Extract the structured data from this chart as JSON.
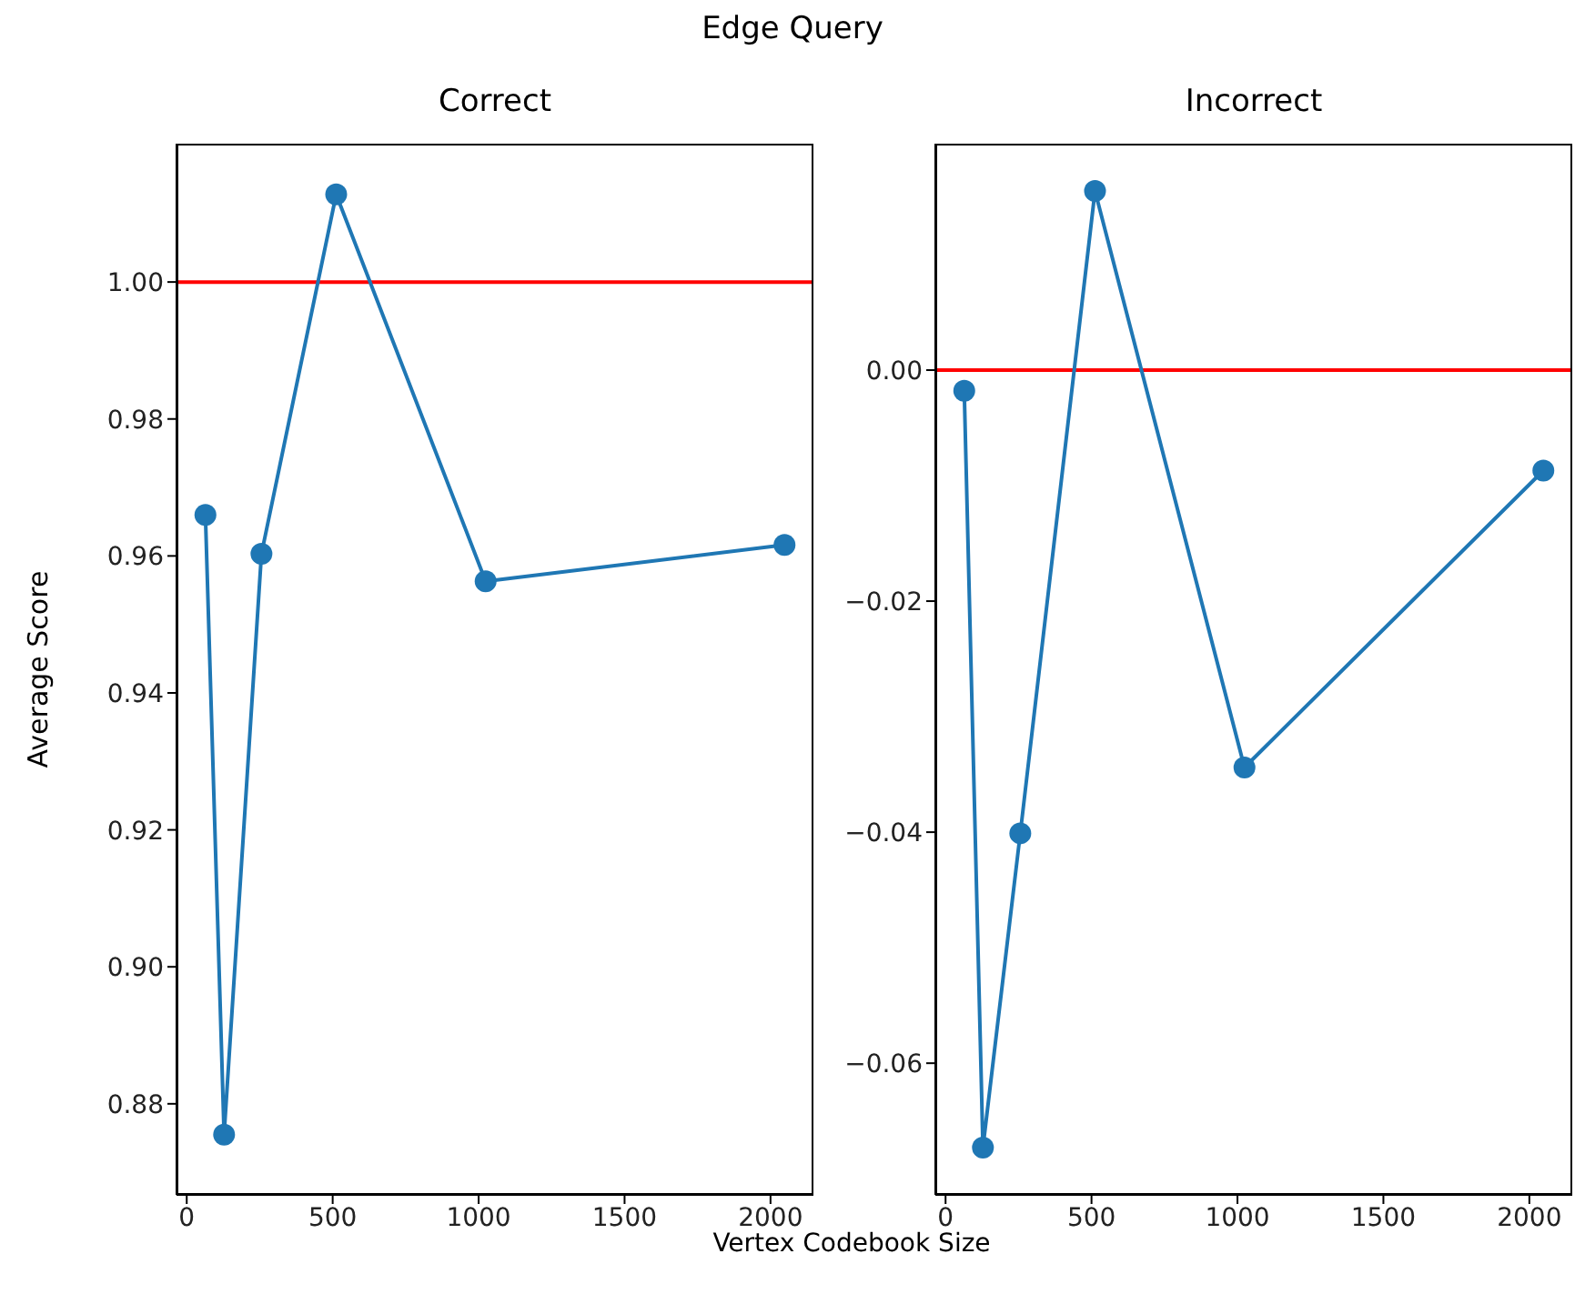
{
  "chart_data": [
    {
      "type": "line",
      "title": "Correct",
      "annotations": [
        "Edge Query"
      ],
      "xlabel": "Vertex Codebook Size",
      "ylabel": "Average Score",
      "x": [
        64,
        128,
        256,
        512,
        1024,
        2048
      ],
      "series": [
        {
          "color": "#1f77b4",
          "values": [
            0.966,
            0.8755,
            0.9603,
            1.0128,
            0.9563,
            0.9616
          ]
        }
      ],
      "xlim": [
        -35,
        2147
      ],
      "xticks": [
        0,
        500,
        1000,
        1500,
        2000
      ],
      "ylim": [
        0.8667,
        1.0202
      ],
      "yticks": [
        {
          "value": 0.88,
          "label": "0.88"
        },
        {
          "value": 0.9,
          "label": "0.90"
        },
        {
          "value": 0.92,
          "label": "0.92"
        },
        {
          "value": 0.94,
          "label": "0.94"
        },
        {
          "value": 0.96,
          "label": "0.96"
        },
        {
          "value": 0.98,
          "label": "0.98"
        },
        {
          "value": 1,
          "label": "1.00"
        }
      ],
      "ref_lines": [
        {
          "axis": "y",
          "value": 1,
          "color": "#ff0000"
        }
      ],
      "marker": "circle",
      "line_style": "solid",
      "grid": false,
      "legend": false
    },
    {
      "type": "line",
      "title": "Incorrect",
      "x": [
        64,
        128,
        256,
        512,
        1024,
        2048
      ],
      "series": [
        {
          "color": "#1f77b4",
          "values": [
            -0.0018,
            -0.0673,
            -0.0401,
            0.0155,
            -0.0344,
            -0.0087
          ]
        }
      ],
      "xlim": [
        -35,
        2147
      ],
      "xticks": [
        0,
        500,
        1000,
        1500,
        2000
      ],
      "ylim": [
        -0.0714,
        0.0196
      ],
      "yticks": [
        {
          "value": -0.06,
          "label": "−0.06"
        },
        {
          "value": -0.04,
          "label": "−0.04"
        },
        {
          "value": -0.02,
          "label": "−0.02"
        },
        {
          "value": 0,
          "label": "0.00"
        }
      ],
      "ref_lines": [
        {
          "axis": "y",
          "value": 0,
          "color": "#ff0000"
        }
      ],
      "marker": "circle",
      "line_style": "solid",
      "grid": false,
      "legend": false
    }
  ]
}
